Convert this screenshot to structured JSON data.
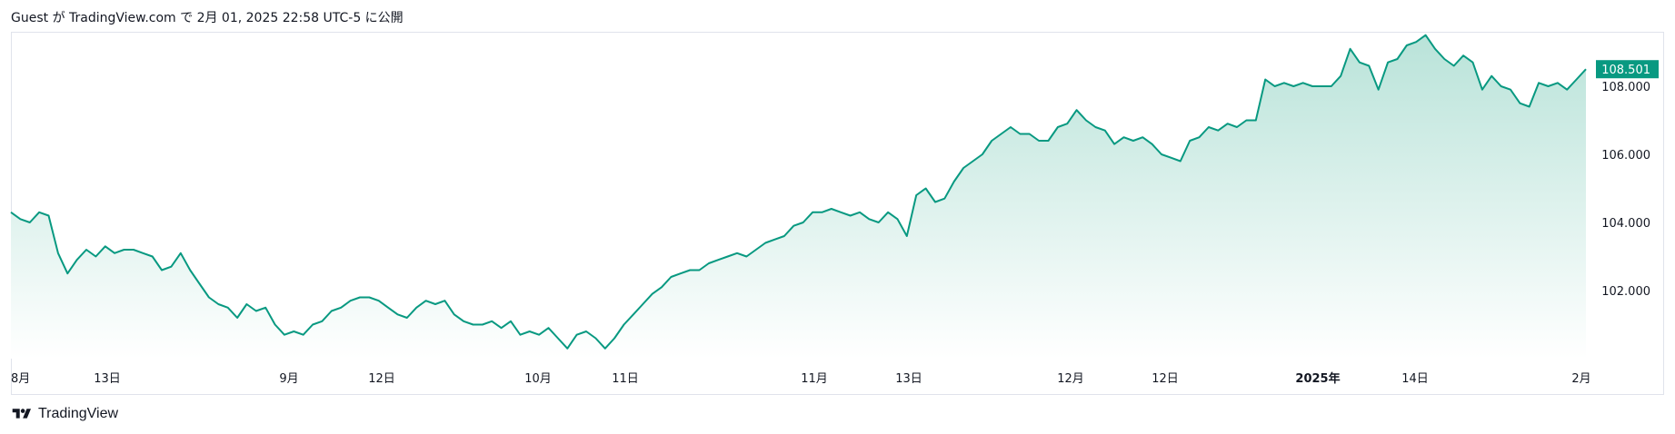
{
  "header": {
    "published": "Guest が TradingView.com で 2月 01, 2025 22:58 UTC-5 に公開"
  },
  "footer": {
    "brand": "TradingView"
  },
  "colors": {
    "line": "#089981",
    "area_top": "#b9e3d9",
    "area_bottom": "#ffffff",
    "price_tag": "#089981"
  },
  "chart_data": {
    "type": "area",
    "ylim": [
      100.0,
      109.6
    ],
    "y_ticks": [
      "102.000",
      "104.000",
      "106.000",
      "108.000"
    ],
    "last_price": "108.501",
    "x_ticks": [
      {
        "label": "8月",
        "bold": false
      },
      {
        "label": "13日",
        "bold": false
      },
      {
        "label": "9月",
        "bold": false
      },
      {
        "label": "12日",
        "bold": false
      },
      {
        "label": "10月",
        "bold": false
      },
      {
        "label": "11日",
        "bold": false
      },
      {
        "label": "11月",
        "bold": false
      },
      {
        "label": "13日",
        "bold": false
      },
      {
        "label": "12月",
        "bold": false
      },
      {
        "label": "12日",
        "bold": false
      },
      {
        "label": "2025年",
        "bold": true
      },
      {
        "label": "14日",
        "bold": false
      },
      {
        "label": "2月",
        "bold": false
      }
    ],
    "values": [
      104.3,
      104.1,
      104.0,
      104.3,
      104.2,
      103.1,
      102.5,
      102.9,
      103.2,
      103.0,
      103.3,
      103.1,
      103.2,
      103.2,
      103.1,
      103.0,
      102.6,
      102.7,
      103.1,
      102.6,
      102.2,
      101.8,
      101.6,
      101.5,
      101.2,
      101.6,
      101.4,
      101.5,
      101.0,
      100.7,
      100.8,
      100.7,
      101.0,
      101.1,
      101.4,
      101.5,
      101.7,
      101.8,
      101.8,
      101.7,
      101.5,
      101.3,
      101.2,
      101.5,
      101.7,
      101.6,
      101.7,
      101.3,
      101.1,
      101.0,
      101.0,
      101.1,
      100.9,
      101.1,
      100.7,
      100.8,
      100.7,
      100.9,
      100.6,
      100.3,
      100.7,
      100.8,
      100.6,
      100.3,
      100.6,
      101.0,
      101.3,
      101.6,
      101.9,
      102.1,
      102.4,
      102.5,
      102.6,
      102.6,
      102.8,
      102.9,
      103.0,
      103.1,
      103.0,
      103.2,
      103.4,
      103.5,
      103.6,
      103.9,
      104.0,
      104.3,
      104.3,
      104.4,
      104.3,
      104.2,
      104.3,
      104.1,
      104.0,
      104.3,
      104.1,
      103.6,
      104.8,
      105.0,
      104.6,
      104.7,
      105.2,
      105.6,
      105.8,
      106.0,
      106.4,
      106.6,
      106.8,
      106.6,
      106.6,
      106.4,
      106.4,
      106.8,
      106.9,
      107.3,
      107.0,
      106.8,
      106.7,
      106.3,
      106.5,
      106.4,
      106.5,
      106.3,
      106.0,
      105.9,
      105.8,
      106.4,
      106.5,
      106.8,
      106.7,
      106.9,
      106.8,
      107.0,
      107.0,
      108.2,
      108.0,
      108.1,
      108.0,
      108.1,
      108.0,
      108.0,
      108.0,
      108.3,
      109.1,
      108.7,
      108.6,
      107.9,
      108.7,
      108.8,
      109.2,
      109.3,
      109.5,
      109.1,
      108.8,
      108.6,
      108.9,
      108.7,
      107.9,
      108.3,
      108.0,
      107.9,
      107.5,
      107.4,
      108.1,
      108.0,
      108.1,
      107.9,
      108.2,
      108.5
    ]
  }
}
